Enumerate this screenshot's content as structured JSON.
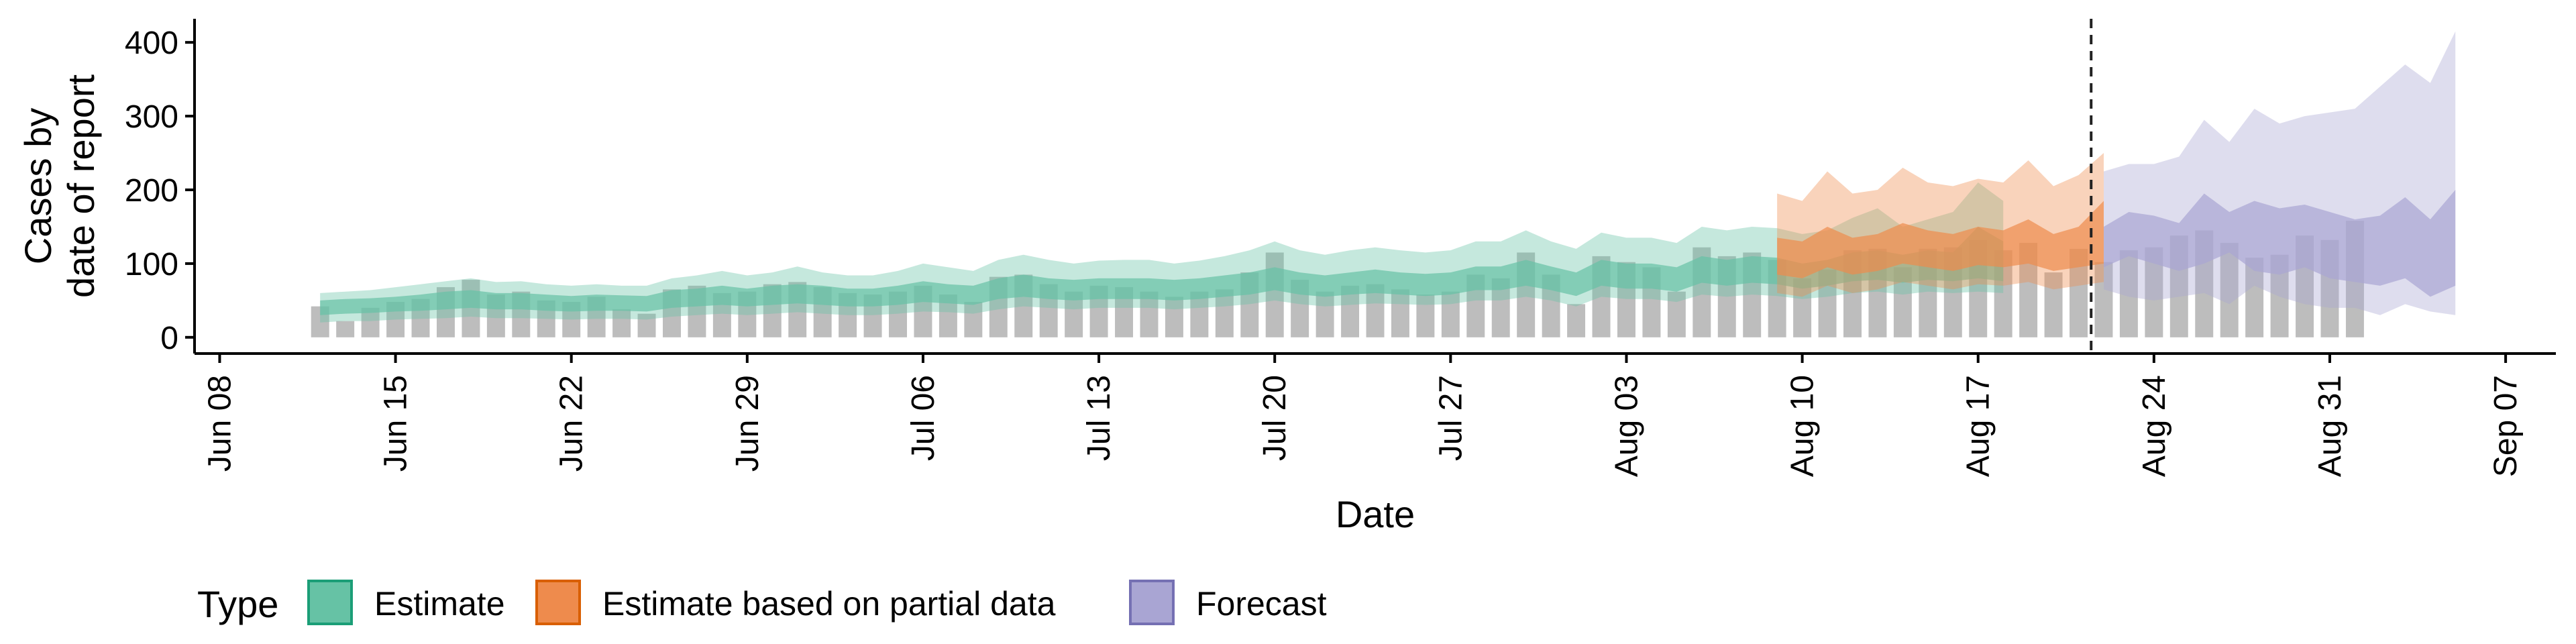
{
  "chart_data": {
    "type": "bar",
    "title": "",
    "xlabel": "Date",
    "ylabel_lines": [
      "Cases by",
      "date of report"
    ],
    "ylim": [
      -22,
      432
    ],
    "yticks": [
      0,
      100,
      200,
      300,
      400
    ],
    "x_start": "2020-06-08",
    "xticks": [
      "Jun 08",
      "Jun 15",
      "Jun 22",
      "Jun 29",
      "Jul 06",
      "Jul 13",
      "Jul 20",
      "Jul 27",
      "Aug 03",
      "Aug 10",
      "Aug 17",
      "Aug 24",
      "Aug 31",
      "Sep 07"
    ],
    "xlim": [
      "2020-06-07",
      "2020-09-09"
    ],
    "grid": false,
    "forecast_cutoff": "2020-08-21",
    "bars": {
      "start": "2020-06-12",
      "color": "#bdbdbd",
      "values": [
        42,
        22,
        40,
        48,
        52,
        68,
        78,
        58,
        62,
        50,
        48,
        55,
        38,
        32,
        65,
        70,
        60,
        62,
        72,
        75,
        68,
        60,
        58,
        62,
        70,
        58,
        48,
        82,
        85,
        72,
        62,
        70,
        68,
        62,
        55,
        62,
        65,
        88,
        115,
        78,
        62,
        70,
        72,
        65,
        58,
        62,
        85,
        80,
        115,
        85,
        45,
        110,
        102,
        95,
        62,
        122,
        110,
        115,
        105,
        80,
        92,
        118,
        120,
        95,
        120,
        122,
        132,
        118,
        128,
        88,
        120,
        102,
        118,
        122,
        138,
        145,
        128,
        108,
        112,
        138,
        132,
        158
      ]
    },
    "series": [
      {
        "name": "Estimate",
        "color": "#1b9e77",
        "fill": "#66c2a5",
        "start": "2020-06-12",
        "outer_low": [
          20,
          22,
          22,
          24,
          25,
          26,
          28,
          26,
          26,
          25,
          24,
          25,
          25,
          24,
          28,
          30,
          32,
          30,
          32,
          34,
          32,
          30,
          30,
          32,
          35,
          34,
          32,
          38,
          42,
          40,
          38,
          40,
          40,
          40,
          38,
          40,
          42,
          45,
          50,
          45,
          42,
          44,
          46,
          45,
          44,
          45,
          50,
          50,
          55,
          50,
          42,
          55,
          52,
          52,
          48,
          58,
          55,
          58,
          56,
          52,
          55,
          60,
          62,
          58,
          62,
          60,
          62,
          60
        ],
        "inner_low": [
          30,
          32,
          33,
          35,
          36,
          38,
          40,
          38,
          38,
          36,
          35,
          36,
          36,
          35,
          40,
          42,
          44,
          42,
          44,
          46,
          44,
          42,
          42,
          44,
          48,
          46,
          44,
          52,
          55,
          52,
          50,
          52,
          52,
          52,
          50,
          52,
          55,
          58,
          64,
          58,
          55,
          58,
          60,
          58,
          56,
          58,
          64,
          64,
          70,
          64,
          56,
          70,
          66,
          66,
          62,
          74,
          70,
          74,
          72,
          66,
          70,
          76,
          78,
          74,
          78,
          76,
          80,
          76
        ],
        "inner_high": [
          50,
          52,
          53,
          55,
          58,
          62,
          64,
          60,
          60,
          58,
          56,
          58,
          57,
          56,
          64,
          66,
          70,
          66,
          70,
          72,
          70,
          66,
          66,
          70,
          76,
          72,
          70,
          80,
          85,
          80,
          78,
          80,
          80,
          80,
          78,
          80,
          84,
          88,
          95,
          88,
          84,
          88,
          92,
          88,
          86,
          88,
          96,
          96,
          105,
          96,
          88,
          105,
          100,
          100,
          95,
          110,
          105,
          110,
          108,
          100,
          105,
          115,
          118,
          112,
          118,
          115,
          150,
          130
        ],
        "outer_high": [
          60,
          62,
          64,
          68,
          72,
          76,
          80,
          75,
          76,
          72,
          70,
          72,
          70,
          70,
          80,
          84,
          90,
          84,
          88,
          96,
          88,
          84,
          84,
          90,
          100,
          95,
          90,
          105,
          112,
          105,
          100,
          104,
          105,
          105,
          100,
          104,
          110,
          118,
          130,
          118,
          112,
          118,
          122,
          118,
          115,
          118,
          130,
          130,
          145,
          130,
          120,
          142,
          135,
          135,
          128,
          150,
          145,
          150,
          148,
          140,
          145,
          162,
          175,
          150,
          160,
          170,
          210,
          185
        ]
      },
      {
        "name": "Estimate based on partial data",
        "color": "#d95f02",
        "fill": "#ee8b4d",
        "start": "2020-08-09",
        "outer_low": [
          60,
          55,
          70,
          60,
          65,
          75,
          70,
          65,
          72,
          70,
          75,
          65,
          70,
          75
        ],
        "inner_low": [
          85,
          80,
          95,
          85,
          90,
          100,
          95,
          90,
          98,
          95,
          100,
          90,
          95,
          100
        ],
        "inner_high": [
          135,
          130,
          150,
          135,
          140,
          155,
          145,
          140,
          150,
          145,
          160,
          140,
          150,
          185
        ],
        "outer_high": [
          195,
          185,
          225,
          195,
          200,
          230,
          210,
          205,
          215,
          210,
          240,
          205,
          220,
          250
        ]
      },
      {
        "name": "Forecast",
        "color": "#7570b3",
        "fill": "#a9a5d3",
        "start": "2020-08-22",
        "outer_low": [
          65,
          55,
          50,
          55,
          60,
          45,
          70,
          55,
          45,
          40,
          40,
          30,
          45,
          35,
          30
        ],
        "inner_low": [
          95,
          110,
          100,
          90,
          100,
          115,
          90,
          85,
          95,
          80,
          75,
          70,
          80,
          55,
          70
        ],
        "inner_high": [
          150,
          170,
          165,
          155,
          195,
          170,
          185,
          175,
          180,
          170,
          160,
          165,
          190,
          160,
          200
        ],
        "outer_high": [
          225,
          235,
          235,
          245,
          295,
          265,
          310,
          290,
          300,
          305,
          310,
          340,
          370,
          345,
          415
        ]
      }
    ],
    "legend": {
      "title": "Type",
      "placement": "bottom-left",
      "items": [
        "Estimate",
        "Estimate based on partial data",
        "Forecast"
      ]
    }
  }
}
